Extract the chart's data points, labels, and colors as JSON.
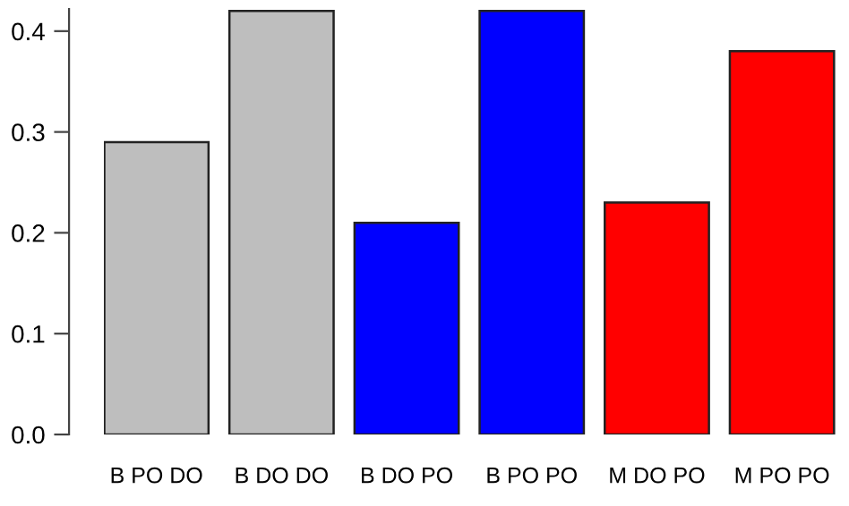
{
  "chart_data": {
    "type": "bar",
    "categories": [
      "B PO DO",
      "B DO DO",
      "B DO PO",
      "B PO PO",
      "M DO PO",
      "M PO PO"
    ],
    "values": [
      0.29,
      0.42,
      0.21,
      0.42,
      0.23,
      0.38
    ],
    "colors": [
      "#bebebe",
      "#bebebe",
      "#0000ff",
      "#0000ff",
      "#ff0000",
      "#ff0000"
    ],
    "ylim": [
      0,
      0.422
    ],
    "yticks": [
      {
        "value": 0,
        "label": "0.0"
      },
      0.1,
      0.2,
      0.3,
      0.4
    ],
    "grid": false
  }
}
